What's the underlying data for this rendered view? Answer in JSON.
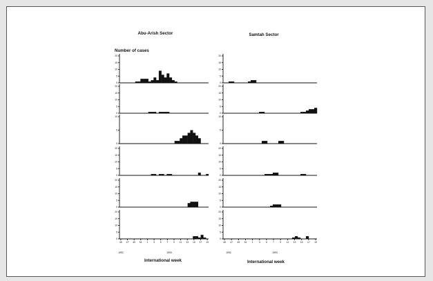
{
  "chart_data": {
    "type": "bar",
    "ylabel": "Number of cases",
    "xlabel": "International week",
    "week_ticks": [
      "45",
      "47",
      "49",
      "51",
      "1",
      "3",
      "5",
      "7",
      "9",
      "11",
      "13",
      "15",
      "17",
      "19"
    ],
    "year_labels": [
      "1992",
      "1993"
    ],
    "ytick_sets": {
      "p20": [
        "0",
        "5",
        "10",
        "15",
        "20"
      ],
      "p10": [
        "0",
        "5",
        "10"
      ]
    },
    "panels": [
      {
        "name": "Abu-Arish Sector",
        "row": 0,
        "col": 0,
        "yticks": "p20",
        "ymax": 20,
        "values": [
          0,
          0,
          0,
          0,
          0,
          0,
          1,
          1,
          3,
          3,
          3,
          1,
          2,
          4,
          2,
          9,
          6,
          4,
          7,
          4,
          2,
          1,
          0,
          0,
          0,
          0,
          0,
          0,
          0,
          0,
          0,
          0,
          0,
          0
        ]
      },
      {
        "name": "Samtah Sector",
        "row": 0,
        "col": 1,
        "yticks": "p20",
        "ymax": 20,
        "values": [
          0,
          0,
          1,
          1,
          0,
          0,
          0,
          0,
          0,
          1,
          2,
          2,
          0,
          0,
          0,
          0,
          0,
          0,
          0,
          0,
          0,
          0,
          0,
          0,
          0,
          0,
          0,
          0,
          0,
          0,
          0,
          0,
          0,
          0
        ]
      },
      {
        "row": 1,
        "col": 0,
        "yticks": "p20",
        "ymax": 20,
        "values": [
          0,
          0,
          0,
          0,
          0,
          0,
          0,
          0,
          0,
          0,
          0,
          1,
          1,
          1,
          0,
          1,
          1,
          1,
          1,
          0,
          0,
          0,
          0,
          0,
          0,
          0,
          0,
          0,
          0,
          0,
          0,
          0,
          0,
          0
        ]
      },
      {
        "row": 1,
        "col": 1,
        "yticks": "p20",
        "ymax": 20,
        "values": [
          0,
          0,
          0,
          0,
          0,
          0,
          0,
          0,
          0,
          0,
          0,
          0,
          0,
          1,
          1,
          0,
          0,
          0,
          0,
          0,
          0,
          0,
          0,
          0,
          0,
          0,
          0,
          0,
          1,
          1,
          2,
          3,
          3,
          4
        ]
      },
      {
        "row": 2,
        "col": 0,
        "yticks": "p10",
        "ymax": 10,
        "values": [
          0,
          0,
          0,
          0,
          0,
          0,
          0,
          0,
          0,
          0,
          0,
          0,
          0,
          0,
          0,
          0,
          0,
          0,
          0,
          0,
          0,
          1,
          1,
          2,
          3,
          3,
          4,
          5,
          4,
          3,
          2,
          0,
          0,
          0
        ]
      },
      {
        "row": 2,
        "col": 1,
        "yticks": "p10",
        "ymax": 10,
        "values": [
          0,
          0,
          0,
          0,
          0,
          0,
          0,
          0,
          0,
          0,
          0,
          0,
          0,
          0,
          1,
          1,
          0,
          0,
          0,
          0,
          1,
          1,
          0,
          0,
          0,
          0,
          0,
          0,
          0,
          0,
          0,
          0,
          0,
          0
        ]
      },
      {
        "row": 3,
        "col": 0,
        "yticks": "p20",
        "ymax": 20,
        "values": [
          0,
          0,
          0,
          0,
          0,
          0,
          0,
          0,
          0,
          0,
          0,
          0,
          1,
          1,
          0,
          1,
          1,
          0,
          1,
          1,
          0,
          0,
          0,
          0,
          0,
          0,
          0,
          0,
          0,
          0,
          2,
          0,
          0,
          1
        ]
      },
      {
        "row": 3,
        "col": 1,
        "yticks": "p20",
        "ymax": 20,
        "values": [
          0,
          0,
          0,
          0,
          0,
          0,
          0,
          0,
          0,
          0,
          0,
          0,
          0,
          0,
          0,
          1,
          1,
          1,
          2,
          2,
          0,
          0,
          0,
          0,
          0,
          0,
          0,
          0,
          1,
          1,
          0,
          0,
          0,
          0
        ]
      },
      {
        "row": 4,
        "col": 0,
        "yticks": "p20",
        "ymax": 20,
        "values": [
          0,
          0,
          0,
          0,
          0,
          0,
          0,
          0,
          0,
          0,
          0,
          0,
          0,
          0,
          0,
          0,
          0,
          0,
          0,
          0,
          0,
          0,
          0,
          0,
          0,
          0,
          3,
          4,
          4,
          4,
          0,
          0,
          0,
          0
        ]
      },
      {
        "row": 4,
        "col": 1,
        "yticks": "p20",
        "ymax": 20,
        "values": [
          0,
          0,
          0,
          0,
          0,
          0,
          0,
          0,
          0,
          0,
          0,
          0,
          0,
          0,
          0,
          0,
          0,
          1,
          2,
          2,
          2,
          0,
          0,
          0,
          0,
          0,
          0,
          0,
          0,
          0,
          0,
          0,
          0,
          0
        ]
      },
      {
        "row": 5,
        "col": 0,
        "yticks": "p20",
        "ymax": 20,
        "values": [
          0,
          0,
          0,
          0,
          0,
          0,
          0,
          0,
          0,
          0,
          0,
          0,
          0,
          0,
          0,
          0,
          0,
          0,
          0,
          0,
          0,
          0,
          0,
          0,
          0,
          0,
          0,
          0,
          2,
          2,
          1,
          3,
          1,
          0
        ]
      },
      {
        "row": 5,
        "col": 1,
        "yticks": "p20",
        "ymax": 20,
        "values": [
          0,
          0,
          0,
          0,
          0,
          0,
          0,
          0,
          0,
          0,
          0,
          0,
          0,
          0,
          0,
          0,
          0,
          0,
          0,
          0,
          0,
          0,
          0,
          0,
          0,
          1,
          2,
          1,
          0,
          0,
          2,
          0,
          0,
          0
        ]
      }
    ]
  }
}
